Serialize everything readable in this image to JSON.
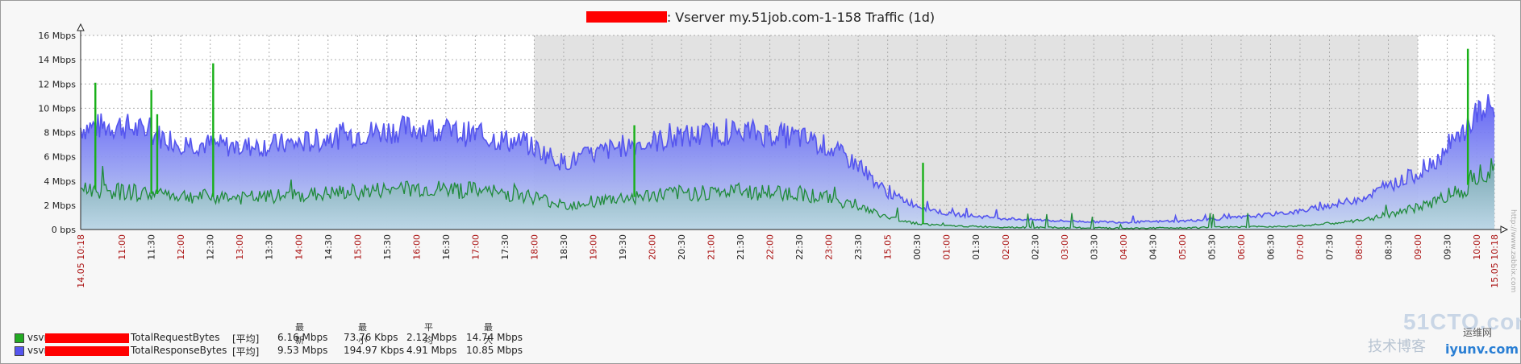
{
  "title": {
    "suffix": ": Vserver my.51job.com-1-158 Traffic (1d)"
  },
  "chart_data": {
    "type": "area",
    "title": ": Vserver my.51job.com-1-158 Traffic (1d)",
    "xlabel": "",
    "ylabel": "",
    "ylim": [
      0,
      16
    ],
    "y_unit": "Mbps",
    "y_ticks": [
      "0 bps",
      "2 Mbps",
      "4 Mbps",
      "6 Mbps",
      "8 Mbps",
      "10 Mbps",
      "12 Mbps",
      "14 Mbps",
      "16 Mbps"
    ],
    "x_ticks": [
      "14.05 10:18",
      "11:00",
      "11:30",
      "12:00",
      "12:30",
      "13:00",
      "13:30",
      "14:00",
      "14:30",
      "15:00",
      "15:30",
      "16:00",
      "16:30",
      "17:00",
      "17:30",
      "18:00",
      "18:30",
      "19:00",
      "19:30",
      "20:00",
      "20:30",
      "21:00",
      "21:30",
      "22:00",
      "22:30",
      "23:00",
      "23:30",
      "15.05",
      "00:30",
      "01:00",
      "01:30",
      "02:00",
      "02:30",
      "03:00",
      "03:30",
      "04:00",
      "04:30",
      "05:00",
      "05:30",
      "06:00",
      "06:30",
      "07:00",
      "07:30",
      "08:00",
      "08:30",
      "09:00",
      "09:30",
      "10:00",
      "15.05 10:18"
    ],
    "x_hours": [
      10.3,
      11.0,
      12.0,
      13.0,
      14.0,
      15.0,
      16.0,
      17.0,
      17.9,
      18.5,
      19.5,
      20.5,
      21.5,
      22.5,
      23.0,
      23.5,
      24.0,
      24.5,
      25.0,
      26.0,
      27.0,
      28.0,
      29.0,
      30.0,
      31.0,
      32.0,
      33.0,
      33.5,
      33.8,
      34.0,
      34.3
    ],
    "series": [
      {
        "name": "TotalResponseBytes",
        "color": "#5555ee",
        "values": [
          8.4,
          8.6,
          7.2,
          6.8,
          7.1,
          7.9,
          8.4,
          7.8,
          7.0,
          5.5,
          6.9,
          7.6,
          8.1,
          7.6,
          6.8,
          5.3,
          3.0,
          2.0,
          1.3,
          0.9,
          0.7,
          0.6,
          0.7,
          1.0,
          1.5,
          2.5,
          4.6,
          6.5,
          8.2,
          9.6,
          10.0
        ]
      },
      {
        "name": "TotalRequestBytes",
        "color": "#22aa22",
        "values": [
          3.4,
          3.1,
          2.8,
          2.6,
          2.8,
          3.1,
          3.4,
          3.2,
          2.8,
          2.0,
          2.6,
          3.0,
          3.1,
          3.0,
          2.6,
          1.9,
          1.0,
          0.5,
          0.3,
          0.2,
          0.15,
          0.1,
          0.15,
          0.2,
          0.3,
          0.7,
          1.8,
          2.8,
          3.4,
          4.5,
          5.5
        ]
      }
    ],
    "spikes": [
      {
        "series": "TotalRequestBytes",
        "x": 10.55,
        "y": 12.1
      },
      {
        "series": "TotalRequestBytes",
        "x": 11.5,
        "y": 11.5
      },
      {
        "series": "TotalRequestBytes",
        "x": 11.6,
        "y": 9.5
      },
      {
        "series": "TotalRequestBytes",
        "x": 12.55,
        "y": 13.7
      },
      {
        "series": "TotalRequestBytes",
        "x": 19.7,
        "y": 8.6
      },
      {
        "series": "TotalRequestBytes",
        "x": 24.6,
        "y": 5.5
      },
      {
        "series": "TotalRequestBytes",
        "x": 33.85,
        "y": 14.9
      }
    ],
    "shaded_ranges": [
      [
        18.0,
        33.0
      ]
    ],
    "grid": true,
    "legend_position": "bottom-left"
  },
  "legend": {
    "headers": {
      "last": "最新",
      "min": "最小",
      "avg": "平均",
      "max": "最大"
    },
    "rows": [
      {
        "prefix": "vsvr",
        "name": "TotalRequestBytes",
        "func": "[平均]",
        "last": "6.16 Mbps",
        "min": "73.76 Kbps",
        "avg": "2.12 Mbps",
        "max": "14.74 Mbps",
        "color": "#22aa22"
      },
      {
        "prefix": "vsvr",
        "name": "TotalResponseBytes",
        "func": "[平均]",
        "last": "9.53 Mbps",
        "min": "194.97 Kbps",
        "avg": "4.91 Mbps",
        "max": "10.85 Mbps",
        "color": "#5555ee"
      }
    ]
  },
  "watermark": {
    "line1": "51CTO.com",
    "line2": "技术博客",
    "line3": "iyunv.com",
    "line4": "运维网"
  },
  "side_text": "http://www.zabbix.com"
}
